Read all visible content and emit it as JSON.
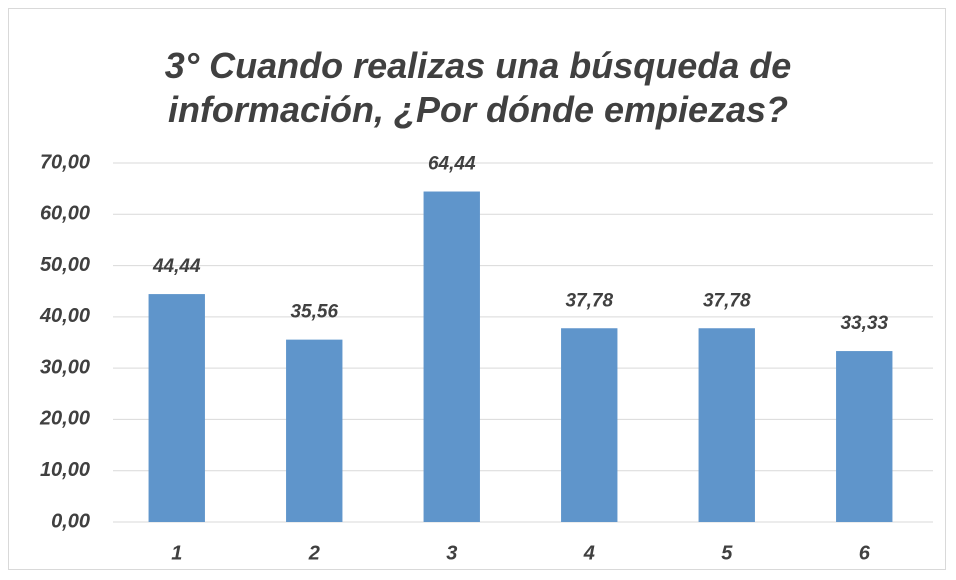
{
  "chart_data": {
    "type": "bar",
    "title": "3° Cuando realizas una búsqueda de información, ¿Por dónde empiezas?",
    "categories": [
      "1",
      "2",
      "3",
      "4",
      "5",
      "6"
    ],
    "values": [
      44.44,
      35.56,
      64.44,
      37.78,
      37.78,
      33.33
    ],
    "value_labels": [
      "44,44",
      "35,56",
      "64,44",
      "37,78",
      "37,78",
      "33,33"
    ],
    "color": "#5f95cb",
    "ylim": [
      0,
      70
    ],
    "yticks": [
      {
        "value": 0,
        "label": "0,00"
      },
      {
        "value": 10,
        "label": "10,00"
      },
      {
        "value": 20,
        "label": "20,00"
      },
      {
        "value": 30,
        "label": "30,00"
      },
      {
        "value": 40,
        "label": "40,00"
      },
      {
        "value": 50,
        "label": "50,00"
      },
      {
        "value": 60,
        "label": "60,00"
      },
      {
        "value": 70,
        "label": "70,00"
      }
    ],
    "grid": true
  }
}
